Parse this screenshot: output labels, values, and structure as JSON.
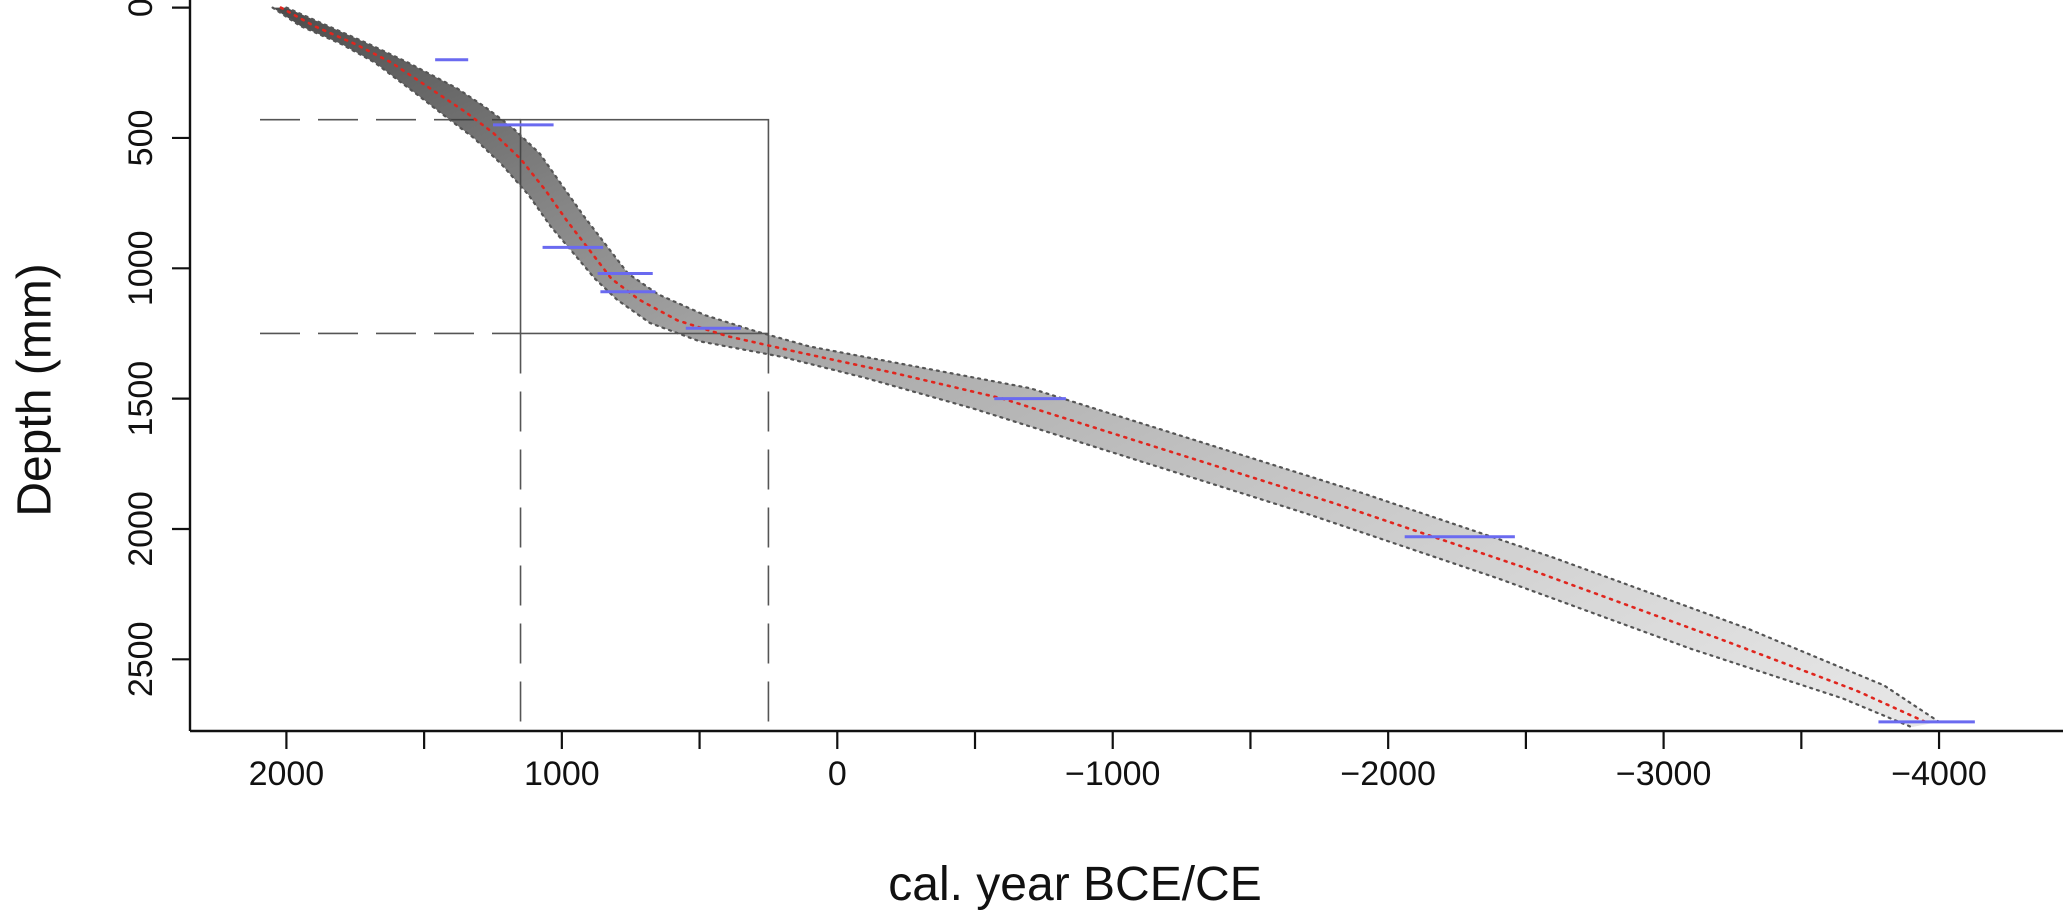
{
  "chart_data": {
    "type": "line",
    "title": "",
    "xlabel": "cal. year BCE/CE",
    "ylabel": "Depth (mm)",
    "xlim": [
      2350,
      -4450
    ],
    "ylim": [
      2775,
      -10
    ],
    "x_axis_reversed": true,
    "y_axis_inverted": true,
    "grid": false,
    "x_ticks": [
      2000,
      1000,
      0,
      -1000,
      -2000,
      -3000,
      -4000
    ],
    "x_tick_labels": [
      "2000",
      "1000",
      "0",
      "−1000",
      "−2000",
      "−3000",
      "−4000"
    ],
    "x_minor_ticks": [
      1500,
      500,
      -500,
      -1500,
      -2500,
      -3500
    ],
    "y_ticks": [
      0,
      500,
      1000,
      1500,
      2000,
      2500
    ],
    "y_tick_labels": [
      "0",
      "500",
      "1000",
      "1500",
      "2000",
      "2500"
    ],
    "series": [
      {
        "type": "line",
        "style": "dotted",
        "color": "#e0261e",
        "x": [
          2020,
          1900,
          1750,
          1620,
          1450,
          1350,
          1250,
          1150,
          1060,
          980,
          900,
          820,
          720,
          580,
          400,
          150,
          -200,
          -600,
          -1200,
          -1800,
          -2500,
          -3200,
          -3700,
          -3950
        ],
        "y": [
          0,
          70,
          140,
          210,
          330,
          400,
          480,
          580,
          700,
          820,
          930,
          1040,
          1120,
          1200,
          1260,
          1320,
          1400,
          1500,
          1700,
          1900,
          2150,
          2420,
          2620,
          2740
        ]
      },
      {
        "type": "line",
        "style": "dotted",
        "color": "#555555",
        "x": [
          2050,
          1950,
          1800,
          1680,
          1530,
          1420,
          1320,
          1220,
          1120,
          1040,
          960,
          880,
          800,
          680,
          500,
          200,
          -100,
          -500,
          -1100,
          -1700,
          -2400,
          -3100,
          -3650,
          -3900
        ],
        "y": [
          0,
          70,
          140,
          210,
          330,
          420,
          500,
          600,
          720,
          840,
          940,
          1040,
          1120,
          1210,
          1280,
          1340,
          1420,
          1540,
          1740,
          1940,
          2190,
          2460,
          2650,
          2760
        ]
      },
      {
        "type": "line",
        "style": "dotted",
        "color": "#555555",
        "x": [
          2000,
          1850,
          1700,
          1560,
          1380,
          1280,
          1180,
          1080,
          1000,
          920,
          840,
          760,
          650,
          480,
          300,
          100,
          -300,
          -700,
          -1300,
          -1900,
          -2600,
          -3300,
          -3800,
          -4000
        ],
        "y": [
          0,
          70,
          140,
          210,
          310,
          380,
          460,
          560,
          680,
          800,
          910,
          1020,
          1100,
          1180,
          1240,
          1300,
          1380,
          1460,
          1660,
          1860,
          2110,
          2380,
          2600,
          2740
        ]
      }
    ],
    "dated_samples": [
      {
        "year_min": 1460,
        "year_max": 1340,
        "depth": 200
      },
      {
        "year_min": 1250,
        "year_max": 1030,
        "depth": 450
      },
      {
        "year_min": 1070,
        "year_max": 850,
        "depth": 920
      },
      {
        "year_min": 870,
        "year_max": 670,
        "depth": 1020
      },
      {
        "year_min": 860,
        "year_max": 660,
        "depth": 1090
      },
      {
        "year_min": 550,
        "year_max": 350,
        "depth": 1230
      },
      {
        "year_min": -570,
        "year_max": -830,
        "depth": 1500
      },
      {
        "year_min": -2060,
        "year_max": -2460,
        "depth": 2030
      },
      {
        "year_min": -3780,
        "year_max": -4130,
        "depth": 2740
      }
    ],
    "sample_color": "#6a6af0",
    "zoom_box": {
      "x_range": [
        1150,
        250
      ],
      "y_range": [
        430,
        1250
      ]
    },
    "reference_line_color": "#555555"
  }
}
